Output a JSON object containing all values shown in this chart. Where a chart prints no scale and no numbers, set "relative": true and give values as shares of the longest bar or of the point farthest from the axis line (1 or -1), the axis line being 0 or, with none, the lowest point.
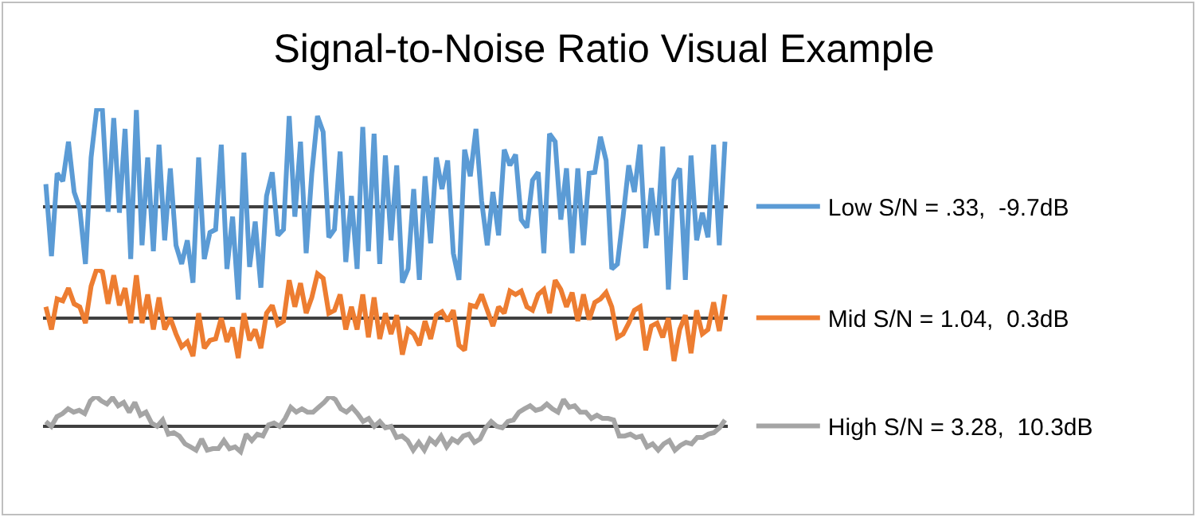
{
  "chart_data": [
    {
      "type": "line",
      "title": "Signal-to-Noise Ratio Visual Example",
      "relative": true,
      "legend": "right",
      "categories": [
        null,
        null,
        null,
        null,
        null,
        null,
        null,
        null,
        null,
        null,
        null,
        null,
        null,
        null,
        null,
        null,
        null,
        null,
        null,
        null,
        null,
        null,
        null,
        null,
        null,
        null,
        null,
        null,
        null,
        null,
        null,
        null,
        null,
        null,
        null,
        null,
        null,
        null,
        null,
        null,
        null,
        null,
        null,
        null,
        null,
        null,
        null,
        null,
        null,
        null,
        null,
        null,
        null,
        null,
        null,
        null,
        null,
        null,
        null,
        null,
        null,
        null,
        null,
        null,
        null,
        null,
        null,
        null,
        null,
        null,
        null,
        null,
        null,
        null,
        null,
        null,
        null,
        null,
        null,
        null,
        null,
        null,
        null,
        null,
        null,
        null,
        null,
        null,
        null,
        null,
        null,
        null,
        null,
        null,
        null,
        null,
        null,
        null,
        null,
        null,
        null,
        null,
        null,
        null,
        null,
        null,
        null,
        null,
        null,
        null,
        null,
        null,
        null,
        null,
        null,
        null,
        null,
        null,
        null,
        null,
        null
      ],
      "series": [
        {
          "name": "Low S/N = .33,  -9.7dB",
          "color": "#5b9bd5",
          "values": [
            0.23,
            -0.5,
            0.34,
            0.26,
            0.66,
            0.15,
            -0.02,
            -0.58,
            0.5,
            1,
            0.98,
            -0.05,
            0.9,
            -0.06,
            0.79,
            -0.53,
            0.98,
            -0.39,
            0.5,
            -0.45,
            0.63,
            -0.34,
            0.39,
            -0.39,
            -0.58,
            -0.34,
            -0.77,
            0.5,
            -0.53,
            -0.26,
            -0.23,
            0.63,
            -0.63,
            -0.1,
            -0.94,
            0.55,
            -0.61,
            -0.15,
            -0.82,
            0.11,
            0.35,
            -0.29,
            -0.23,
            0.92,
            -0.1,
            0.66,
            -0.47,
            0.34,
            0.92,
            0.76,
            -0.31,
            -0.23,
            0.56,
            -0.56,
            0.11,
            -0.63,
            0.81,
            -0.45,
            0.74,
            -0.58,
            0.52,
            -0.34,
            0.42,
            -0.77,
            -0.63,
            0.18,
            -0.74,
            0.31,
            -0.37,
            0.5,
            0.18,
            0.47,
            -0.47,
            -0.74,
            0.58,
            0.31,
            0.79,
            0.06,
            -0.39,
            0.15,
            -0.29,
            0.58,
            0.42,
            0.53,
            -0.13,
            -0.21,
            0.27,
            0.35,
            -0.47,
            0.74,
            0.66,
            -0.13,
            0.39,
            -0.47,
            0.39,
            -0.39,
            0.34,
            0.35,
            0.71,
            0.47,
            -0.63,
            -0.58,
            -0.1,
            0.42,
            0.15,
            0.63,
            -0.42,
            0.19,
            -0.29,
            0.61,
            -0.84,
            0.27,
            0.39,
            -0.74,
            0.52,
            -0.34,
            -0.06,
            -0.31,
            0.63,
            -0.39,
            0.66
          ]
        }
      ]
    },
    {
      "type": "line",
      "relative": true,
      "legend": "right",
      "categories": [
        null,
        null,
        null,
        null,
        null,
        null,
        null,
        null,
        null,
        null,
        null,
        null,
        null,
        null,
        null,
        null,
        null,
        null,
        null,
        null,
        null,
        null,
        null,
        null,
        null,
        null,
        null,
        null,
        null,
        null,
        null,
        null,
        null,
        null,
        null,
        null,
        null,
        null,
        null,
        null,
        null,
        null,
        null,
        null,
        null,
        null,
        null,
        null,
        null,
        null,
        null,
        null,
        null,
        null,
        null,
        null,
        null,
        null,
        null,
        null,
        null,
        null,
        null,
        null,
        null,
        null,
        null,
        null,
        null,
        null,
        null,
        null,
        null,
        null,
        null,
        null,
        null,
        null,
        null,
        null,
        null,
        null,
        null,
        null,
        null,
        null,
        null,
        null,
        null,
        null,
        null,
        null,
        null,
        null,
        null,
        null,
        null,
        null,
        null,
        null,
        null,
        null,
        null,
        null,
        null,
        null,
        null,
        null,
        null,
        null,
        null,
        null,
        null,
        null,
        null,
        null,
        null,
        null,
        null,
        null,
        null
      ],
      "series": [
        {
          "name": "Mid S/N = 1.04,  0.3dB",
          "color": "#ed7d31",
          "values": [
            0.23,
            -0.23,
            0.39,
            0.35,
            0.61,
            0.29,
            0.23,
            -0.1,
            0.65,
            1,
            0.94,
            0.29,
            0.87,
            0.26,
            0.61,
            -0.1,
            0.87,
            -0.1,
            0.48,
            -0.23,
            0.42,
            -0.23,
            0,
            -0.32,
            -0.58,
            -0.48,
            -0.77,
            0.1,
            -0.61,
            -0.45,
            -0.42,
            0,
            -0.48,
            -0.19,
            -0.81,
            0.1,
            -0.45,
            -0.23,
            -0.61,
            0.1,
            0.26,
            -0.13,
            -0.06,
            0.77,
            0.23,
            0.71,
            0.1,
            0.42,
            0.9,
            0.81,
            0.1,
            0.16,
            0.48,
            -0.23,
            0.23,
            -0.23,
            0.48,
            -0.39,
            0.42,
            -0.42,
            0.1,
            -0.32,
            0.06,
            -0.74,
            -0.23,
            -0.32,
            -0.55,
            -0.06,
            -0.42,
            0.06,
            0.13,
            -0.06,
            0.16,
            -0.55,
            -0.65,
            0.26,
            0.23,
            0.48,
            0.16,
            -0.16,
            0.23,
            0.1,
            0.55,
            0.48,
            0.55,
            0.23,
            0.16,
            0.48,
            0.58,
            0.1,
            0.77,
            0.58,
            0.23,
            0.52,
            -0.06,
            0.48,
            -0.03,
            0.32,
            0.39,
            0.52,
            0.23,
            -0.39,
            -0.32,
            -0.1,
            0.16,
            0.23,
            -0.65,
            -0.16,
            -0.1,
            -0.39,
            0,
            -0.87,
            -0.23,
            0.06,
            -0.71,
            0.16,
            -0.32,
            -0.23,
            0.32,
            -0.26,
            0.48
          ]
        }
      ]
    },
    {
      "type": "line",
      "relative": true,
      "legend": "right",
      "categories": [
        null,
        null,
        null,
        null,
        null,
        null,
        null,
        null,
        null,
        null,
        null,
        null,
        null,
        null,
        null,
        null,
        null,
        null,
        null,
        null,
        null,
        null,
        null,
        null,
        null,
        null,
        null,
        null,
        null,
        null,
        null,
        null,
        null,
        null,
        null,
        null,
        null,
        null,
        null,
        null,
        null,
        null,
        null,
        null,
        null,
        null,
        null,
        null,
        null,
        null,
        null,
        null,
        null,
        null,
        null,
        null,
        null,
        null,
        null,
        null,
        null,
        null,
        null,
        null,
        null,
        null,
        null,
        null,
        null,
        null,
        null,
        null,
        null,
        null,
        null,
        null,
        null,
        null,
        null,
        null,
        null,
        null,
        null,
        null,
        null,
        null,
        null,
        null,
        null,
        null,
        null,
        null,
        null,
        null,
        null,
        null,
        null,
        null,
        null,
        null,
        null,
        null,
        null,
        null,
        null,
        null,
        null,
        null,
        null,
        null,
        null,
        null,
        null,
        null,
        null,
        null,
        null,
        null,
        null,
        null,
        null,
        null,
        null
      ],
      "series": [
        {
          "name": "High S/N = 3.28,  10.3dB",
          "color": "#a5a5a5",
          "values": [
            0.16,
            0,
            0.32,
            0.42,
            0.58,
            0.47,
            0.53,
            0.42,
            0.84,
            1,
            0.84,
            0.74,
            0.95,
            0.68,
            0.79,
            0.47,
            0.79,
            0.37,
            0.47,
            0.11,
            0,
            0.21,
            -0.26,
            -0.21,
            -0.32,
            -0.58,
            -0.68,
            -0.79,
            -0.42,
            -0.79,
            -0.74,
            -0.74,
            -0.47,
            -0.74,
            -0.68,
            -0.84,
            -0.26,
            -0.47,
            -0.26,
            -0.32,
            0.05,
            0.11,
            0,
            0.26,
            0.63,
            0.47,
            0.58,
            0.47,
            0.47,
            0.63,
            0.79,
            1,
            0.89,
            0.58,
            0.47,
            0.63,
            0.42,
            0.16,
            0.26,
            0,
            0.16,
            -0.05,
            0,
            -0.37,
            -0.32,
            -0.47,
            -0.79,
            -0.53,
            -0.79,
            -0.42,
            -0.58,
            -0.32,
            -0.68,
            -0.42,
            -0.53,
            -0.32,
            -0.26,
            -0.53,
            -0.42,
            -0.05,
            0.16,
            0,
            -0.05,
            0.16,
            0.21,
            0.47,
            0.58,
            0.68,
            0.53,
            0.58,
            0.74,
            0.58,
            0.47,
            0.89,
            0.63,
            0.68,
            0.47,
            0.47,
            0.26,
            0.37,
            0.26,
            0.26,
            0.21,
            -0.32,
            -0.32,
            -0.26,
            -0.37,
            -0.32,
            -0.68,
            -0.58,
            -0.79,
            -0.58,
            -0.47,
            -0.79,
            -0.63,
            -0.53,
            -0.58,
            -0.37,
            -0.37,
            -0.26,
            -0.21,
            -0.05,
            0.21
          ]
        }
      ]
    }
  ]
}
